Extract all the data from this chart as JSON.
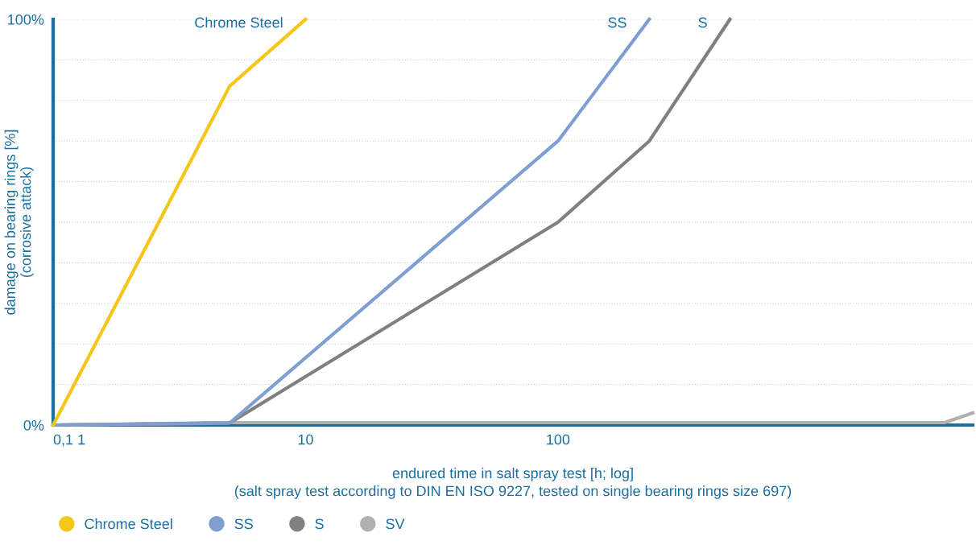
{
  "chart_data": {
    "type": "line",
    "xlabel": "endured time in salt spray test [h; log]\n(salt spray test according to DIN EN ISO 9227, tested on single bearing rings size 697)",
    "ylabel": "damage on bearing rings [%]\n(corrosive attack)",
    "log": "x",
    "xlim": [
      1,
      4400
    ],
    "xticks": [
      {
        "value": 1,
        "label": "0,1 1"
      },
      10,
      100
    ],
    "ylim": [
      0,
      100
    ],
    "yticks": [
      {
        "value": 0,
        "label": "0%"
      },
      {
        "value": 10,
        "label": null
      },
      {
        "value": 20,
        "label": null
      },
      {
        "value": 30,
        "label": null
      },
      {
        "value": 40,
        "label": null
      },
      {
        "value": 50,
        "label": null
      },
      {
        "value": 60,
        "label": null
      },
      {
        "value": 70,
        "label": null
      },
      {
        "value": 80,
        "label": null
      },
      {
        "value": 90,
        "label": null
      },
      {
        "value": 100,
        "label": "100%"
      }
    ],
    "grid": "y",
    "legend": "bottom left",
    "marker": "none",
    "line_style": "solid",
    "series": [
      {
        "name": "Chrome Steel",
        "color": "#f5c518",
        "x": [
          1,
          5,
          10
        ],
        "values": [
          0,
          83.5,
          100
        ]
      },
      {
        "name": "SS",
        "color": "#7f9fd0",
        "x": [
          1,
          5,
          100,
          230
        ],
        "values": [
          0,
          0.5,
          70,
          100
        ]
      },
      {
        "name": "S",
        "color": "#808080",
        "x": [
          1,
          5,
          100,
          230,
          480
        ],
        "values": [
          0,
          0.5,
          50,
          70,
          100
        ]
      },
      {
        "name": "SV",
        "color": "#b0b0b0",
        "x": [
          1,
          5,
          3400,
          4400
        ],
        "values": [
          0,
          0.6,
          0.6,
          3
        ]
      }
    ],
    "annotations": [
      {
        "text": "Chrome Steel",
        "x": 10,
        "y": 100
      },
      {
        "text": "SS",
        "x": 230,
        "y": 100
      },
      {
        "text": "S",
        "x": 480,
        "y": 100
      }
    ]
  }
}
